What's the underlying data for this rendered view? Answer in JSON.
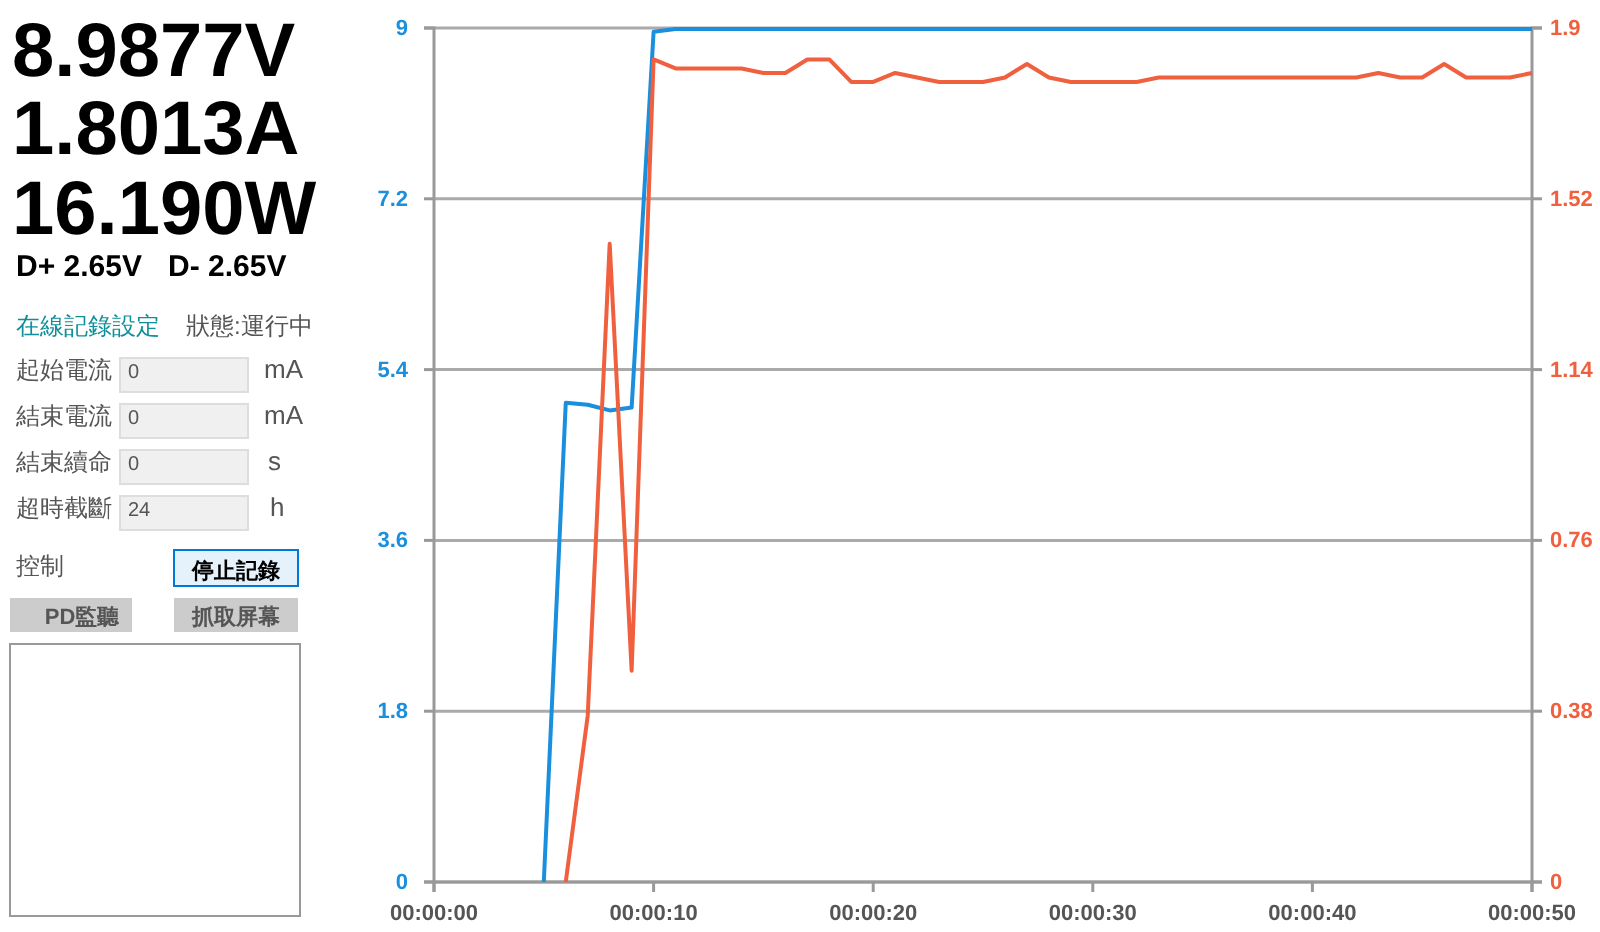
{
  "chart_data": [
    {
      "type": "other",
      "annotations": [
        "8.9877V",
        "1.8013A",
        "16.190W",
        "D+ 2.65V",
        "D- 2.65V",
        "在線記錄設定",
        "狀態:運行中",
        "起始電流",
        "0",
        "mA",
        "結束電流",
        "0",
        "mA",
        "結束續命",
        "0",
        "s",
        "超時截斷",
        "24",
        "h",
        "控制",
        "停止記錄",
        "PD監聽",
        "抓取屏幕"
      ]
    },
    {
      "type": "line",
      "grid": "y",
      "xlim": [
        0,
        50
      ],
      "xticks": [
        {
          "value": 0,
          "label": "00:00:00"
        },
        {
          "value": 10,
          "label": "00:00:10"
        },
        {
          "value": 20,
          "label": "00:00:20"
        },
        {
          "value": 30,
          "label": "00:00:30"
        },
        {
          "value": 40,
          "label": "00:00:40"
        },
        {
          "value": 50,
          "label": "00:00:50"
        }
      ],
      "ylim": [
        0,
        9
      ],
      "yticks": [
        0,
        1.8,
        3.6,
        5.4,
        7.2,
        9
      ],
      "y2lim": [
        0,
        1.9
      ],
      "y2ticks": [
        0,
        0.38,
        0.76,
        1.14,
        1.52,
        1.9
      ],
      "series": [
        {
          "color": "#1a8fdd",
          "x": [
            5,
            6,
            7,
            8,
            9,
            10,
            11,
            12,
            15,
            20,
            25,
            30,
            35,
            40,
            45,
            50
          ],
          "values": [
            0,
            5.05,
            5.03,
            4.97,
            5.0,
            8.96,
            8.99,
            8.99,
            8.99,
            8.99,
            8.99,
            8.99,
            8.99,
            8.99,
            8.99,
            8.99
          ]
        },
        {
          "color": "#f0603f",
          "axis": "y2",
          "x": [
            6,
            7,
            8,
            9,
            10,
            11,
            12,
            13,
            14,
            15,
            16,
            17,
            18,
            19,
            20,
            21,
            22,
            23,
            24,
            25,
            26,
            27,
            28,
            29,
            30,
            31,
            32,
            33,
            34,
            35,
            36,
            37,
            38,
            39,
            40,
            41,
            42,
            43,
            44,
            45,
            46,
            47,
            48,
            49,
            50
          ],
          "values": [
            0,
            0.37,
            1.42,
            0.47,
            1.83,
            1.81,
            1.81,
            1.81,
            1.81,
            1.8,
            1.8,
            1.83,
            1.83,
            1.78,
            1.78,
            1.8,
            1.79,
            1.78,
            1.78,
            1.78,
            1.79,
            1.82,
            1.79,
            1.78,
            1.78,
            1.78,
            1.78,
            1.79,
            1.79,
            1.79,
            1.79,
            1.79,
            1.79,
            1.79,
            1.79,
            1.79,
            1.79,
            1.8,
            1.79,
            1.79,
            1.82,
            1.79,
            1.79,
            1.79,
            1.8
          ]
        }
      ]
    }
  ]
}
